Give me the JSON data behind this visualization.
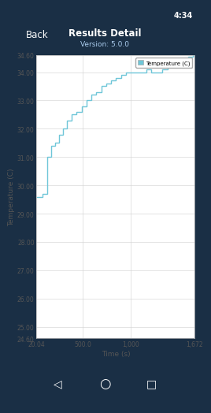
{
  "title": "Results Detail",
  "subtitle": "Version: 5.0.0",
  "xlabel": "Time (s)",
  "ylabel": "Temperature (C)",
  "legend_label": "Temperature (C)",
  "line_color": "#6ec6d8",
  "plot_bg_color": "#ffffff",
  "header_bg": "#2d4a6b",
  "status_bar_bg": "#1a2f45",
  "nav_bar_bg": "#000000",
  "grid_color": "#d0d0d0",
  "xlim": [
    20.04,
    1672
  ],
  "ylim": [
    24.6,
    34.6
  ],
  "xticks": [
    20.04,
    500.0,
    1000,
    1672
  ],
  "xtick_labels": [
    "20.04",
    "500.0",
    "1,000",
    "1,672"
  ],
  "yticks": [
    24.6,
    25.0,
    26.0,
    27.0,
    28.0,
    29.0,
    30.0,
    31.0,
    32.0,
    33.0,
    34.0,
    34.6
  ],
  "data_x": [
    20.04,
    80,
    80,
    130,
    130,
    175,
    175,
    210,
    210,
    255,
    255,
    295,
    295,
    340,
    340,
    385,
    385,
    435,
    435,
    490,
    490,
    540,
    540,
    590,
    590,
    645,
    645,
    695,
    695,
    745,
    745,
    795,
    795,
    845,
    845,
    905,
    905,
    955,
    955,
    1005,
    1005,
    1060,
    1060,
    1115,
    1115,
    1165,
    1165,
    1220,
    1220,
    1270,
    1270,
    1330,
    1330,
    1385,
    1385,
    1440,
    1440,
    1490,
    1490,
    1545,
    1545,
    1600,
    1600,
    1650,
    1650,
    1672
  ],
  "data_y": [
    29.6,
    29.6,
    29.7,
    29.7,
    31.0,
    31.0,
    31.4,
    31.4,
    31.5,
    31.5,
    31.8,
    31.8,
    32.0,
    32.0,
    32.3,
    32.3,
    32.5,
    32.5,
    32.6,
    32.6,
    32.8,
    32.8,
    33.0,
    33.0,
    33.2,
    33.2,
    33.3,
    33.3,
    33.5,
    33.5,
    33.6,
    33.6,
    33.7,
    33.7,
    33.8,
    33.8,
    33.9,
    33.9,
    34.0,
    34.0,
    34.0,
    34.0,
    34.0,
    34.0,
    34.0,
    34.0,
    34.1,
    34.1,
    34.0,
    34.0,
    34.0,
    34.0,
    34.1,
    34.1,
    34.2,
    34.2,
    34.3,
    34.3,
    34.4,
    34.4,
    34.5,
    34.5,
    34.55,
    34.55,
    34.6,
    34.6
  ]
}
